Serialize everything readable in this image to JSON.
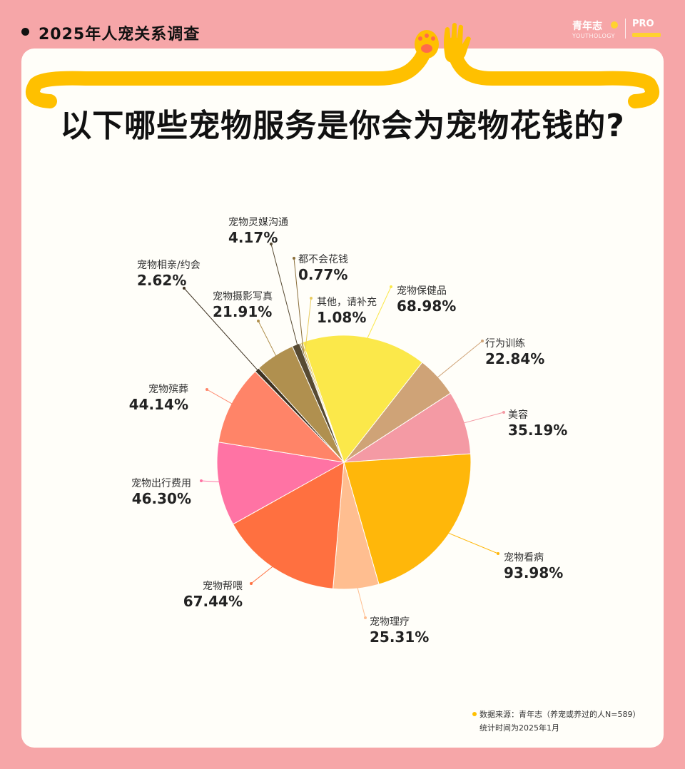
{
  "header": {
    "title": "2025年人宠关系调查"
  },
  "logo": {
    "name": "青年志",
    "sub": "YOUTHOLOGY",
    "pro": "PRO"
  },
  "main_title": "以下哪些宠物服务是你会为宠物花钱的?",
  "footnote": {
    "source": "数据来源：青年志（养宠或养过的人N=589）",
    "time": "统计时间为2025年1月"
  },
  "colors": {
    "background": "#F6A6A8",
    "accent_yellow": "#FFC000"
  },
  "chart_data": {
    "type": "pie",
    "title": "以下哪些宠物服务是你会为宠物花钱的?",
    "slices": [
      {
        "label": "宠物保健品",
        "value": 68.98,
        "display": "68.98%",
        "color": "#FBE84A"
      },
      {
        "label": "行为训练",
        "value": 22.84,
        "display": "22.84%",
        "color": "#CFA377"
      },
      {
        "label": "美容",
        "value": 35.19,
        "display": "35.19%",
        "color": "#F49AA4"
      },
      {
        "label": "宠物看病",
        "value": 93.98,
        "display": "93.98%",
        "color": "#FFB70A"
      },
      {
        "label": "宠物理疗",
        "value": 25.31,
        "display": "25.31%",
        "color": "#FFBE90"
      },
      {
        "label": "宠物帮喂",
        "value": 67.44,
        "display": "67.44%",
        "color": "#FF7040"
      },
      {
        "label": "宠物出行费用",
        "value": 46.3,
        "display": "46.30%",
        "color": "#FF73A4"
      },
      {
        "label": "宠物殡葬",
        "value": 44.14,
        "display": "44.14%",
        "color": "#FF8468"
      },
      {
        "label": "宠物相亲/约会",
        "value": 2.62,
        "display": "2.62%",
        "color": "#3E3222"
      },
      {
        "label": "宠物摄影写真",
        "value": 21.91,
        "display": "21.91%",
        "color": "#B0904F"
      },
      {
        "label": "宠物灵媒沟通",
        "value": 4.17,
        "display": "4.17%",
        "color": "#574A32"
      },
      {
        "label": "都不会花钱",
        "value": 0.77,
        "display": "0.77%",
        "color": "#8A6E3A"
      },
      {
        "label": "其他，请补充",
        "value": 1.08,
        "display": "1.08%",
        "color": "#E8CB5E"
      }
    ]
  }
}
